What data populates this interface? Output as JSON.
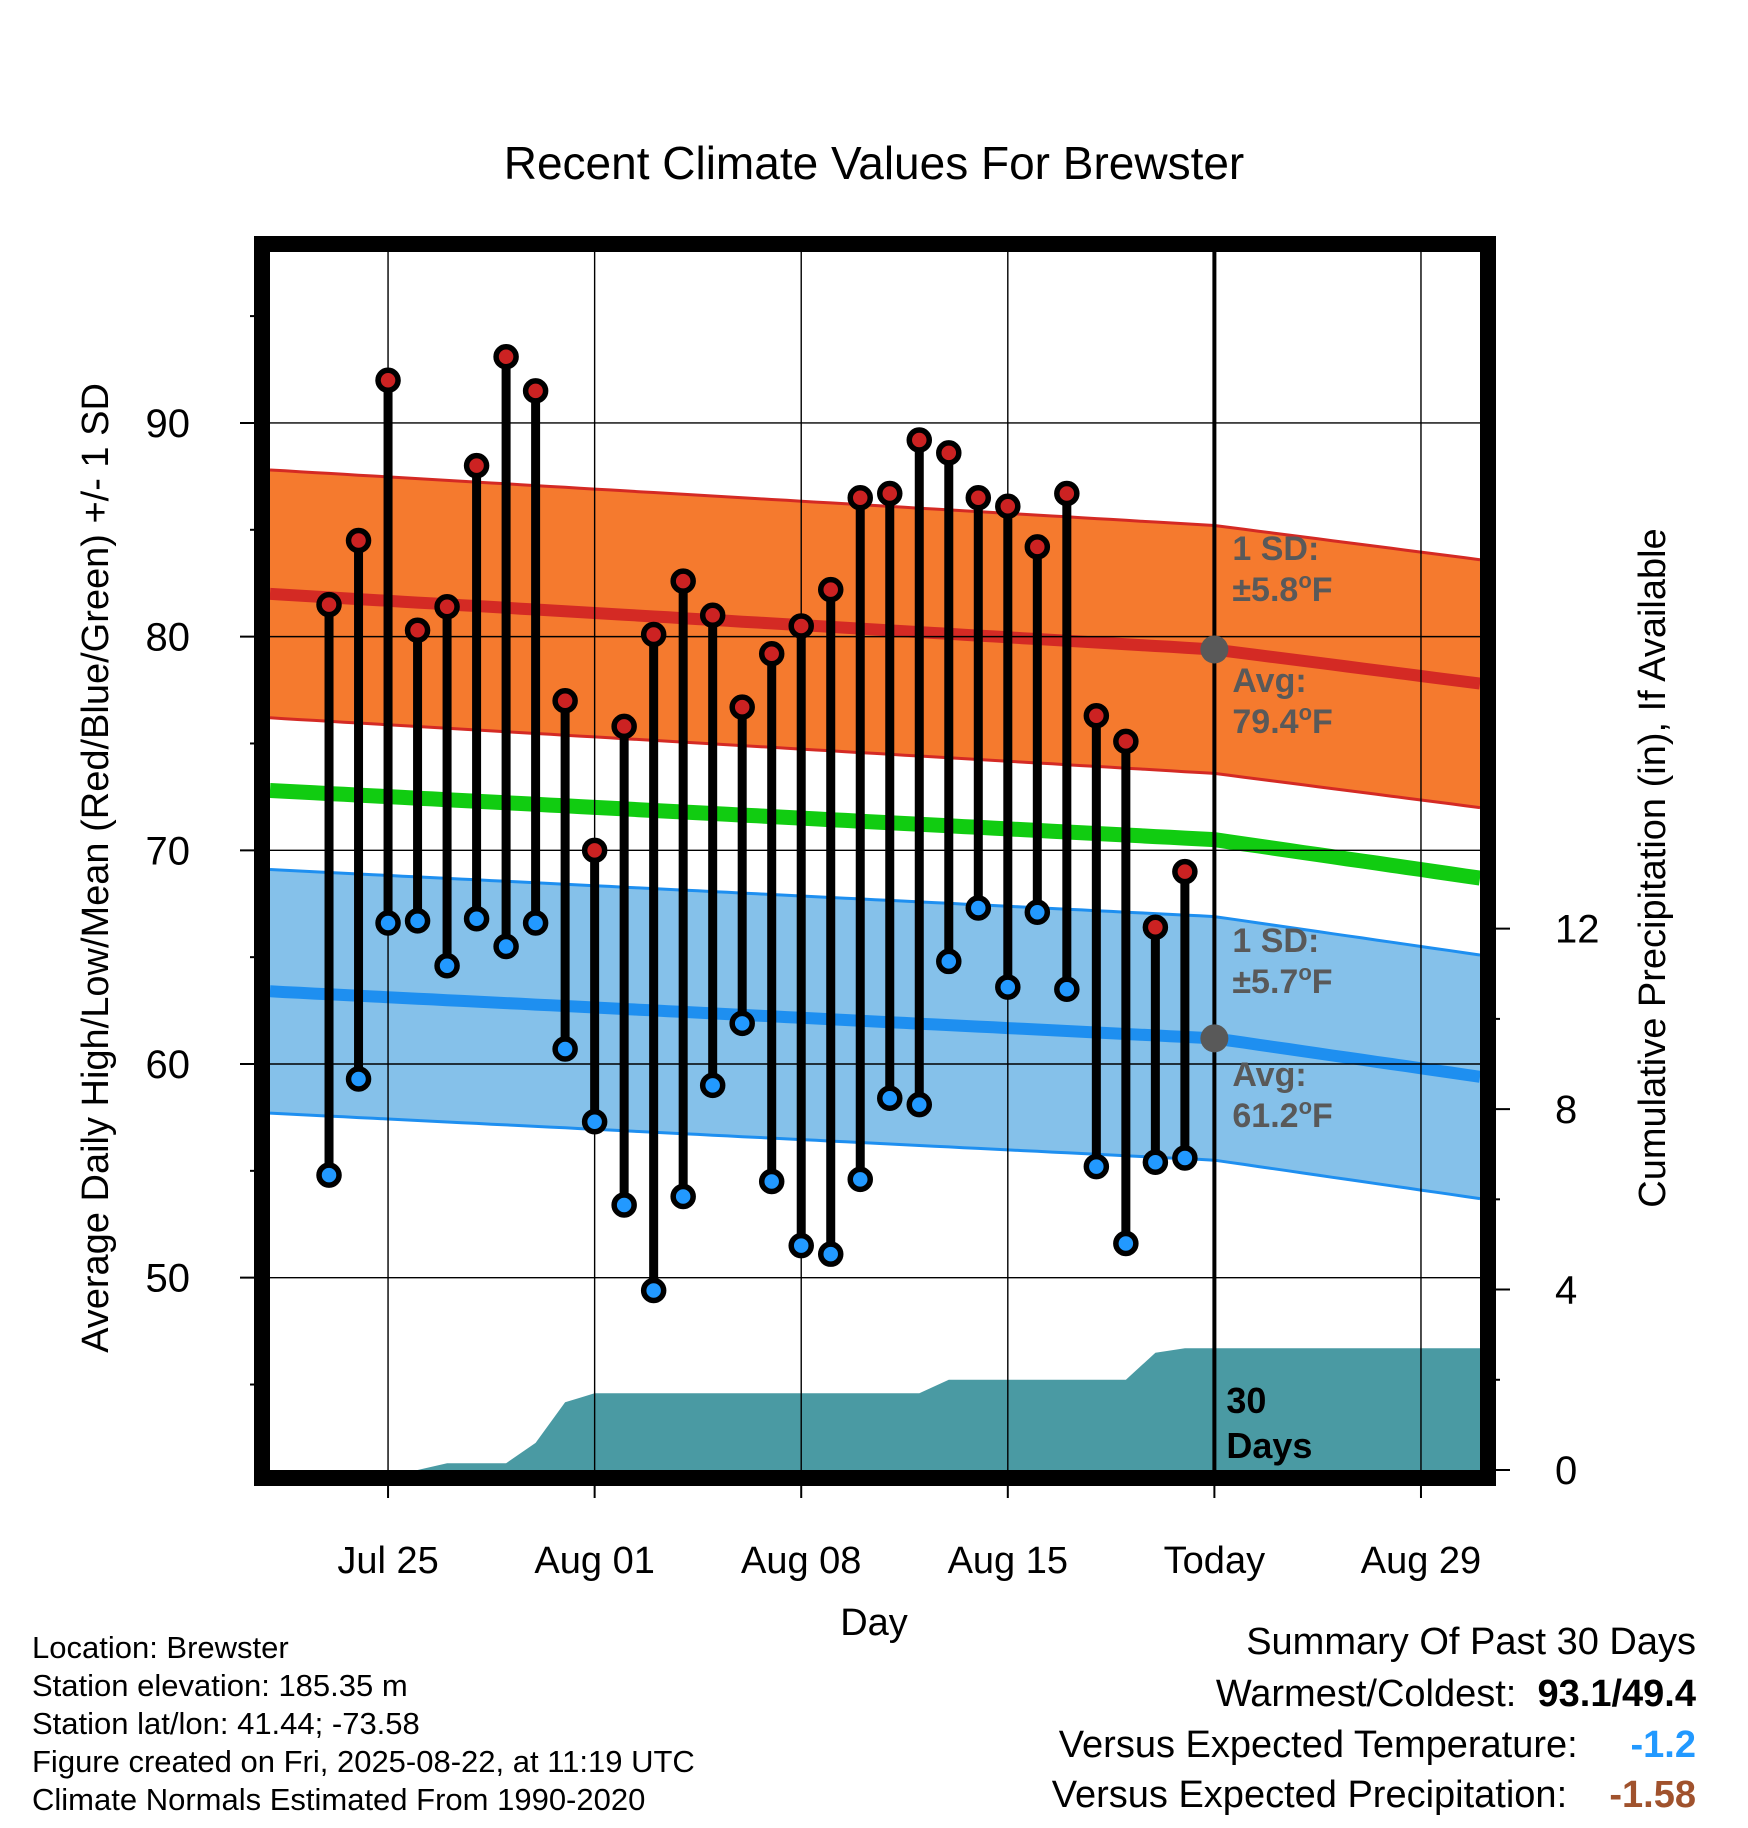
{
  "chart_data": {
    "type": "line",
    "title": "Recent Climate Values For Brewster",
    "xlabel": "Day",
    "ylabel": "Average Daily High/Low/Mean (Red/Blue/Green) +/- 1 SD",
    "y2label": "Cumulative Precipitation (in), If Available",
    "xlim": [
      "2025-07-21",
      "2025-08-31"
    ],
    "ylim": [
      41,
      98
    ],
    "y2lim": [
      0,
      27
    ],
    "x_ticks": [
      {
        "date": "2025-07-25",
        "label": "Jul 25"
      },
      {
        "date": "2025-08-01",
        "label": "Aug 01"
      },
      {
        "date": "2025-08-08",
        "label": "Aug 08"
      },
      {
        "date": "2025-08-15",
        "label": "Aug 15"
      },
      {
        "date": "2025-08-22",
        "label": "Today"
      },
      {
        "date": "2025-08-29",
        "label": "Aug 29"
      }
    ],
    "y_ticks": [
      50,
      60,
      70,
      80,
      90
    ],
    "y2_ticks": [
      0,
      4,
      8,
      12
    ],
    "grid": true,
    "days": [
      "2025-07-23",
      "2025-07-24",
      "2025-07-25",
      "2025-07-26",
      "2025-07-27",
      "2025-07-28",
      "2025-07-29",
      "2025-07-30",
      "2025-07-31",
      "2025-08-01",
      "2025-08-02",
      "2025-08-03",
      "2025-08-04",
      "2025-08-05",
      "2025-08-06",
      "2025-08-07",
      "2025-08-08",
      "2025-08-09",
      "2025-08-10",
      "2025-08-11",
      "2025-08-12",
      "2025-08-13",
      "2025-08-14",
      "2025-08-15",
      "2025-08-16",
      "2025-08-17",
      "2025-08-18",
      "2025-08-19",
      "2025-08-20",
      "2025-08-21"
    ],
    "highs": [
      81.5,
      84.5,
      92.0,
      80.3,
      81.4,
      88.0,
      93.1,
      91.5,
      77.0,
      70.0,
      75.8,
      80.1,
      82.6,
      81.0,
      76.7,
      79.2,
      80.5,
      82.2,
      86.5,
      86.7,
      89.2,
      88.6,
      86.5,
      86.1,
      84.2,
      86.7,
      76.3,
      75.1,
      66.4,
      69.0
    ],
    "lows": [
      54.8,
      59.3,
      66.6,
      66.7,
      64.6,
      66.8,
      65.5,
      66.6,
      60.7,
      57.3,
      53.4,
      49.4,
      53.8,
      59.0,
      61.9,
      54.5,
      51.5,
      51.1,
      54.6,
      58.4,
      58.1,
      64.8,
      67.3,
      63.6,
      67.1,
      63.5,
      55.2,
      51.6,
      55.4,
      55.6
    ],
    "normal_high": {
      "x": [
        "2025-07-21",
        "2025-08-22",
        "2025-08-31"
      ],
      "avg": [
        82.0,
        79.4,
        77.8
      ],
      "sd": 5.8
    },
    "normal_mean": {
      "x": [
        "2025-07-21",
        "2025-08-22",
        "2025-08-31"
      ],
      "values": [
        72.8,
        70.5,
        68.7
      ]
    },
    "normal_low": {
      "x": [
        "2025-07-21",
        "2025-08-22",
        "2025-08-31"
      ],
      "avg": [
        63.4,
        61.2,
        59.4
      ],
      "sd": 5.7
    },
    "precip_cumulative": {
      "x": [
        "2025-07-21",
        "2025-07-25",
        "2025-07-26",
        "2025-07-27",
        "2025-07-29",
        "2025-07-30",
        "2025-07-31",
        "2025-08-01",
        "2025-08-02",
        "2025-08-11",
        "2025-08-12",
        "2025-08-13",
        "2025-08-19",
        "2025-08-20",
        "2025-08-21",
        "2025-08-22",
        "2025-08-31"
      ],
      "values": [
        0,
        0,
        0,
        0.15,
        0.15,
        0.6,
        1.5,
        1.7,
        1.7,
        1.7,
        1.7,
        2.0,
        2.0,
        2.6,
        2.7,
        2.7,
        2.7
      ]
    },
    "colors": {
      "high_dot": "#cc2222",
      "low_dot": "#2299ff",
      "high_band": "#f57a2e",
      "high_line": "#d42a24",
      "low_band": "#85c1ea",
      "low_line": "#1e8ff0",
      "mean_line": "#11cc11",
      "precip": "#4a9aa3",
      "annotation": "#595959",
      "cold": "#2299ff",
      "dry": "#a0522d"
    },
    "annotations": {
      "high_sd": [
        "1 SD:",
        "±5.8",
        "F"
      ],
      "high_avg": [
        "Avg:",
        "79.4",
        "F"
      ],
      "low_sd": [
        "1 SD:",
        "±5.7",
        "F"
      ],
      "low_avg": [
        "Avg:",
        "61.2",
        "F"
      ],
      "degree": "o",
      "days": [
        "30",
        "Days"
      ]
    }
  },
  "info": {
    "location": "Location: Brewster",
    "elevation": "Station elevation: 185.35 m",
    "latlon": "Station lat/lon: 41.44; -73.58",
    "created": "Figure created on Fri, 2025-08-22, at 11:19 UTC",
    "normals": "Climate Normals Estimated From 1990-2020"
  },
  "summary": {
    "title": "Summary Of Past 30 Days",
    "warm_cold_label": "Warmest/Coldest:",
    "warm_value": "93.1",
    "slash": "/",
    "cold_value": "49.4",
    "temp_label": "Versus Expected Temperature:",
    "temp_value": "-1.2",
    "precip_label": "Versus Expected Precipitation:",
    "precip_value": "-1.58"
  }
}
